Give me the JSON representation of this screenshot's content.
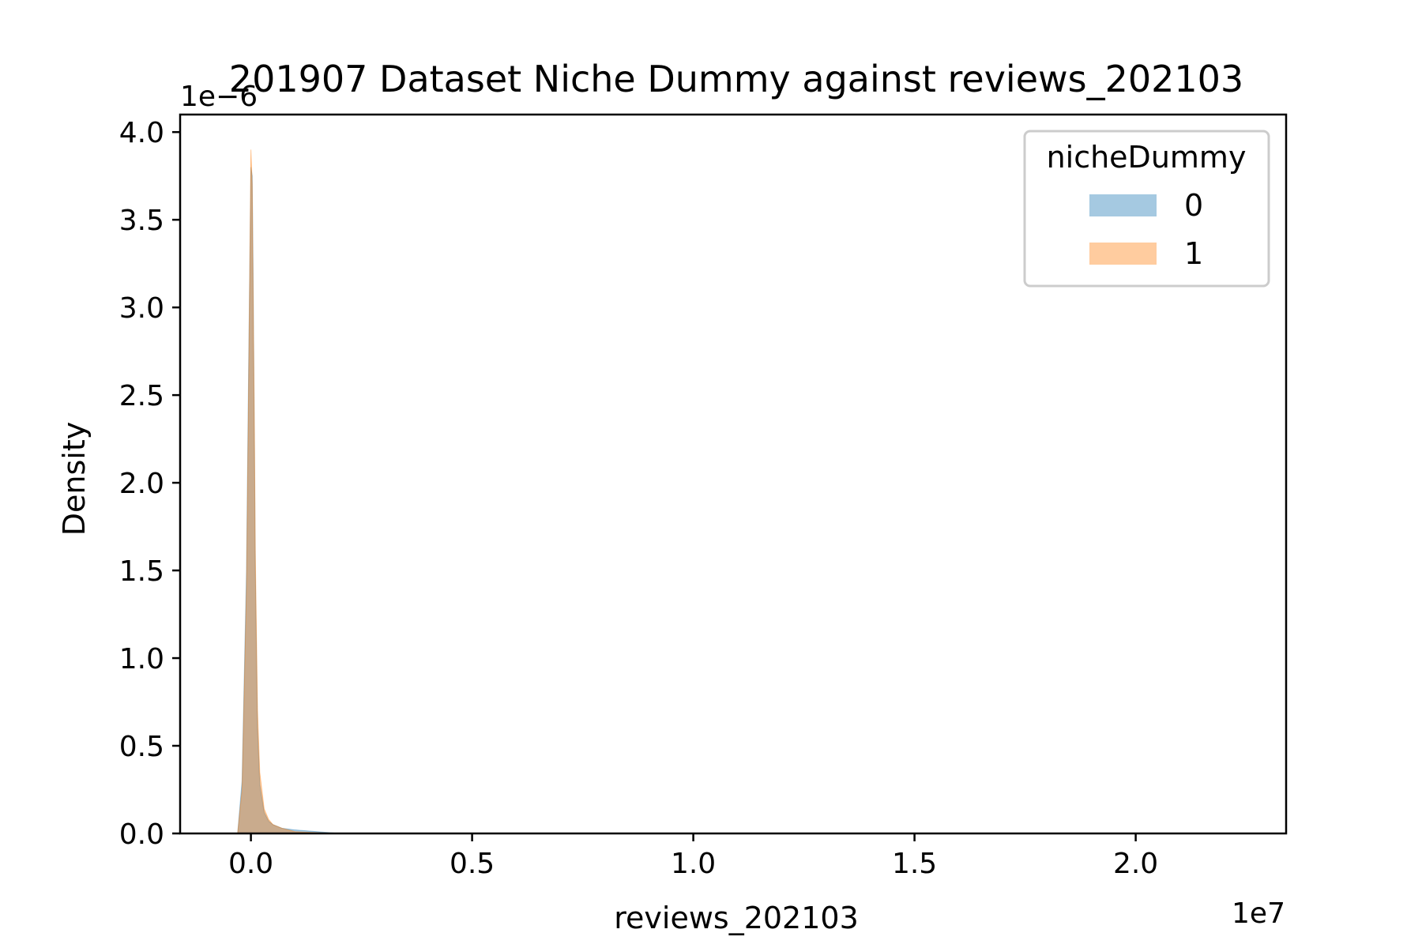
{
  "chart_data": {
    "type": "area",
    "title": "201907 Dataset Niche Dummy against reviews_202103",
    "xlabel": "reviews_202103",
    "ylabel": "Density",
    "x_offset_label": "1e7",
    "y_offset_label": "1e−6",
    "xlim": [
      -1.6,
      23.4
    ],
    "ylim": [
      0,
      4.1
    ],
    "xticks": [
      0.0,
      0.5,
      1.0,
      1.5,
      2.0
    ],
    "xtick_labels": [
      "0.0",
      "0.5",
      "1.0",
      "1.5",
      "2.0"
    ],
    "yticks": [
      0.0,
      0.5,
      1.0,
      1.5,
      2.0,
      2.5,
      3.0,
      3.5,
      4.0
    ],
    "ytick_labels": [
      "0.0",
      "0.5",
      "1.0",
      "1.5",
      "2.0",
      "2.5",
      "3.0",
      "3.5",
      "4.0"
    ],
    "x_tick_scale": 10,
    "grid": false,
    "legend": {
      "title": "nicheDummy",
      "placement": "top-right",
      "entries": [
        "0",
        "1"
      ]
    },
    "series": [
      {
        "name": "0",
        "color": "#1f77b4",
        "x": [
          -0.3,
          -0.2,
          -0.1,
          -0.05,
          0.0,
          0.03,
          0.05,
          0.08,
          0.1,
          0.15,
          0.2,
          0.3,
          0.4,
          0.5,
          0.7,
          1.0,
          1.5,
          2.0
        ],
        "y": [
          0.0,
          0.3,
          1.5,
          2.7,
          3.8,
          3.75,
          3.2,
          2.2,
          1.5,
          0.6,
          0.28,
          0.12,
          0.07,
          0.05,
          0.03,
          0.02,
          0.01,
          0.0
        ]
      },
      {
        "name": "1",
        "color": "#ff7f0e",
        "x": [
          -0.3,
          -0.2,
          -0.1,
          -0.05,
          0.0,
          0.03,
          0.05,
          0.08,
          0.1,
          0.15,
          0.2,
          0.3,
          0.4,
          0.5,
          0.7,
          1.0,
          1.5,
          2.0
        ],
        "y": [
          0.0,
          0.25,
          1.4,
          2.6,
          3.9,
          3.7,
          3.1,
          2.3,
          1.6,
          0.7,
          0.35,
          0.14,
          0.08,
          0.05,
          0.03,
          0.01,
          0.005,
          0.0
        ]
      }
    ]
  }
}
